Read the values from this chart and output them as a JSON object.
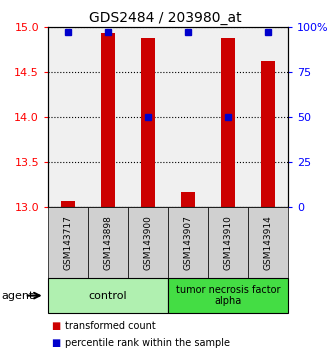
{
  "title": "GDS2484 / 203980_at",
  "samples": [
    "GSM143717",
    "GSM143898",
    "GSM143900",
    "GSM143907",
    "GSM143910",
    "GSM143914"
  ],
  "red_values": [
    13.07,
    14.93,
    14.87,
    13.17,
    14.87,
    14.62
  ],
  "blue_values": [
    97,
    97,
    50,
    97,
    50,
    97
  ],
  "ylim_left": [
    13.0,
    15.0
  ],
  "ylim_right": [
    0,
    100
  ],
  "yticks_left": [
    13.0,
    13.5,
    14.0,
    14.5,
    15.0
  ],
  "yticks_right": [
    0,
    25,
    50,
    75,
    100
  ],
  "ytick_labels_right": [
    "0",
    "25",
    "50",
    "75",
    "100%"
  ],
  "bar_color": "#CC0000",
  "dot_color": "#0000CC",
  "bar_width": 0.35,
  "background_color": "#ffffff",
  "plot_bg_color": "#f0f0f0",
  "ctrl_color": "#b0f0b0",
  "tnf_color": "#44dd44",
  "legend_red_label": "transformed count",
  "legend_blue_label": "percentile rank within the sample",
  "agent_label": "agent",
  "ctrl_samples_count": 3,
  "tnf_samples_count": 3
}
